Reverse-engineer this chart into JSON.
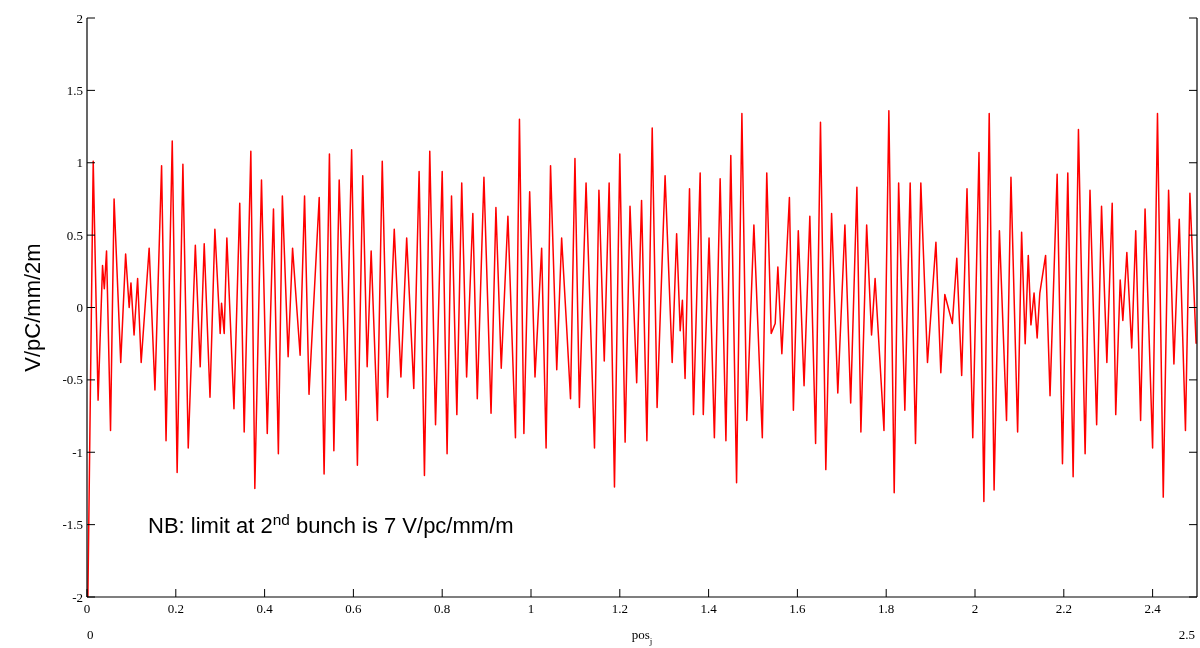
{
  "chart_data": {
    "type": "line",
    "xlabel": "pos$_{j}$",
    "ylabel": "V/pC/mm/2m",
    "xlim": [
      0,
      2.5
    ],
    "ylim": [
      -2,
      2
    ],
    "xticks": [
      0,
      0.2,
      0.4,
      0.6,
      0.8,
      1,
      1.2,
      1.4,
      1.6,
      1.8,
      2,
      2.2,
      2.4
    ],
    "yticks": [
      -2,
      -1.5,
      -1,
      -0.5,
      0,
      0.5,
      1,
      1.5,
      2
    ],
    "grid": false,
    "marker": "none",
    "line_style": "solid",
    "annotations": [
      "NB: limit at 2$^{nd}$ bunch is 7 V/pc/mm/m",
      "0",
      "2.5"
    ],
    "series": [
      {
        "color": "#ff0000",
        "x": [
          0.002,
          0.014,
          0.025,
          0.035,
          0.039,
          0.044,
          0.053,
          0.061,
          0.076,
          0.087,
          0.095,
          0.099,
          0.106,
          0.114,
          0.122,
          0.14,
          0.153,
          0.168,
          0.178,
          0.192,
          0.203,
          0.216,
          0.228,
          0.244,
          0.255,
          0.264,
          0.277,
          0.288,
          0.3,
          0.303,
          0.309,
          0.315,
          0.331,
          0.344,
          0.354,
          0.369,
          0.378,
          0.393,
          0.406,
          0.42,
          0.431,
          0.44,
          0.453,
          0.463,
          0.48,
          0.49,
          0.5,
          0.523,
          0.534,
          0.546,
          0.556,
          0.568,
          0.583,
          0.596,
          0.609,
          0.621,
          0.631,
          0.64,
          0.654,
          0.665,
          0.677,
          0.692,
          0.707,
          0.72,
          0.736,
          0.748,
          0.76,
          0.772,
          0.785,
          0.8,
          0.811,
          0.821,
          0.833,
          0.844,
          0.855,
          0.869,
          0.879,
          0.894,
          0.91,
          0.921,
          0.933,
          0.948,
          0.965,
          0.974,
          0.984,
          0.997,
          1.009,
          1.024,
          1.034,
          1.044,
          1.058,
          1.069,
          1.08,
          1.089,
          1.099,
          1.109,
          1.124,
          1.143,
          1.153,
          1.165,
          1.176,
          1.188,
          1.2,
          1.212,
          1.223,
          1.238,
          1.249,
          1.261,
          1.273,
          1.284,
          1.302,
          1.318,
          1.328,
          1.336,
          1.341,
          1.347,
          1.357,
          1.366,
          1.381,
          1.388,
          1.401,
          1.413,
          1.426,
          1.439,
          1.45,
          1.463,
          1.475,
          1.486,
          1.502,
          1.521,
          1.531,
          1.541,
          1.55,
          1.556,
          1.565,
          1.582,
          1.591,
          1.602,
          1.615,
          1.628,
          1.641,
          1.652,
          1.664,
          1.677,
          1.691,
          1.707,
          1.72,
          1.734,
          1.743,
          1.756,
          1.767,
          1.775,
          1.795,
          1.806,
          1.818,
          1.828,
          1.842,
          1.854,
          1.866,
          1.878,
          1.893,
          1.912,
          1.923,
          1.932,
          1.949,
          1.959,
          1.97,
          1.982,
          1.995,
          2.009,
          2.02,
          2.032,
          2.043,
          2.055,
          2.071,
          2.081,
          2.096,
          2.105,
          2.113,
          2.12,
          2.126,
          2.133,
          2.14,
          2.146,
          2.159,
          2.169,
          2.185,
          2.197,
          2.209,
          2.221,
          2.233,
          2.248,
          2.259,
          2.274,
          2.285,
          2.297,
          2.309,
          2.317,
          2.327,
          2.333,
          2.342,
          2.353,
          2.362,
          2.373,
          2.383,
          2.4,
          2.411,
          2.424,
          2.436,
          2.448,
          2.46,
          2.474,
          2.484,
          2.498
        ],
        "values": [
          -2,
          1.01,
          -0.64,
          0.29,
          0.13,
          0.39,
          -0.85,
          0.75,
          -0.38,
          0.37,
          0,
          0.17,
          -0.19,
          0.2,
          -0.38,
          0.41,
          -0.57,
          0.98,
          -0.92,
          1.15,
          -1.14,
          0.99,
          -0.97,
          0.43,
          -0.41,
          0.44,
          -0.62,
          0.54,
          -0.18,
          0.03,
          -0.18,
          0.48,
          -0.7,
          0.72,
          -0.86,
          1.08,
          -1.25,
          0.88,
          -0.87,
          0.68,
          -1.01,
          0.77,
          -0.34,
          0.41,
          -0.33,
          0.77,
          -0.6,
          0.76,
          -1.15,
          1.06,
          -0.99,
          0.88,
          -0.64,
          1.09,
          -1.09,
          0.91,
          -0.41,
          0.39,
          -0.78,
          1.01,
          -0.62,
          0.54,
          -0.48,
          0.48,
          -0.56,
          0.94,
          -1.16,
          1.08,
          -0.81,
          0.94,
          -1.01,
          0.77,
          -0.74,
          0.86,
          -0.48,
          0.65,
          -0.63,
          0.9,
          -0.73,
          0.69,
          -0.42,
          0.63,
          -0.9,
          1.3,
          -0.87,
          0.8,
          -0.48,
          0.41,
          -0.97,
          0.98,
          -0.43,
          0.48,
          -0.12,
          -0.63,
          1.03,
          -0.69,
          0.86,
          -0.97,
          0.81,
          -0.37,
          0.86,
          -1.24,
          1.06,
          -0.93,
          0.7,
          -0.52,
          0.74,
          -0.92,
          1.24,
          -0.69,
          0.91,
          -0.38,
          0.51,
          -0.16,
          0.05,
          -0.49,
          0.82,
          -0.74,
          0.93,
          -0.74,
          0.48,
          -0.9,
          0.89,
          -0.92,
          1.05,
          -1.21,
          1.34,
          -0.78,
          0.57,
          -0.9,
          0.93,
          -0.18,
          -0.11,
          0.28,
          -0.32,
          0.76,
          -0.71,
          0.53,
          -0.54,
          0.63,
          -0.94,
          1.28,
          -1.12,
          0.65,
          -0.59,
          0.57,
          -0.66,
          0.83,
          -0.86,
          0.57,
          -0.19,
          0.2,
          -0.85,
          1.36,
          -1.28,
          0.86,
          -0.71,
          0.86,
          -0.94,
          0.86,
          -0.38,
          0.45,
          -0.45,
          0.09,
          -0.11,
          0.34,
          -0.47,
          0.82,
          -0.9,
          1.07,
          -1.34,
          1.34,
          -1.26,
          0.53,
          -0.78,
          0.9,
          -0.86,
          0.52,
          -0.25,
          0.36,
          -0.12,
          0.1,
          -0.21,
          0.1,
          0.36,
          -0.61,
          0.92,
          -1.08,
          0.93,
          -1.17,
          1.23,
          -1.01,
          0.81,
          -0.81,
          0.7,
          -0.38,
          0.72,
          -0.74,
          0.19,
          -0.09,
          0.38,
          -0.28,
          0.53,
          -0.78,
          0.68,
          -0.97,
          1.34,
          -1.31,
          0.81,
          -0.39,
          0.61,
          -0.85,
          0.79,
          -0.25
        ]
      }
    ]
  }
}
